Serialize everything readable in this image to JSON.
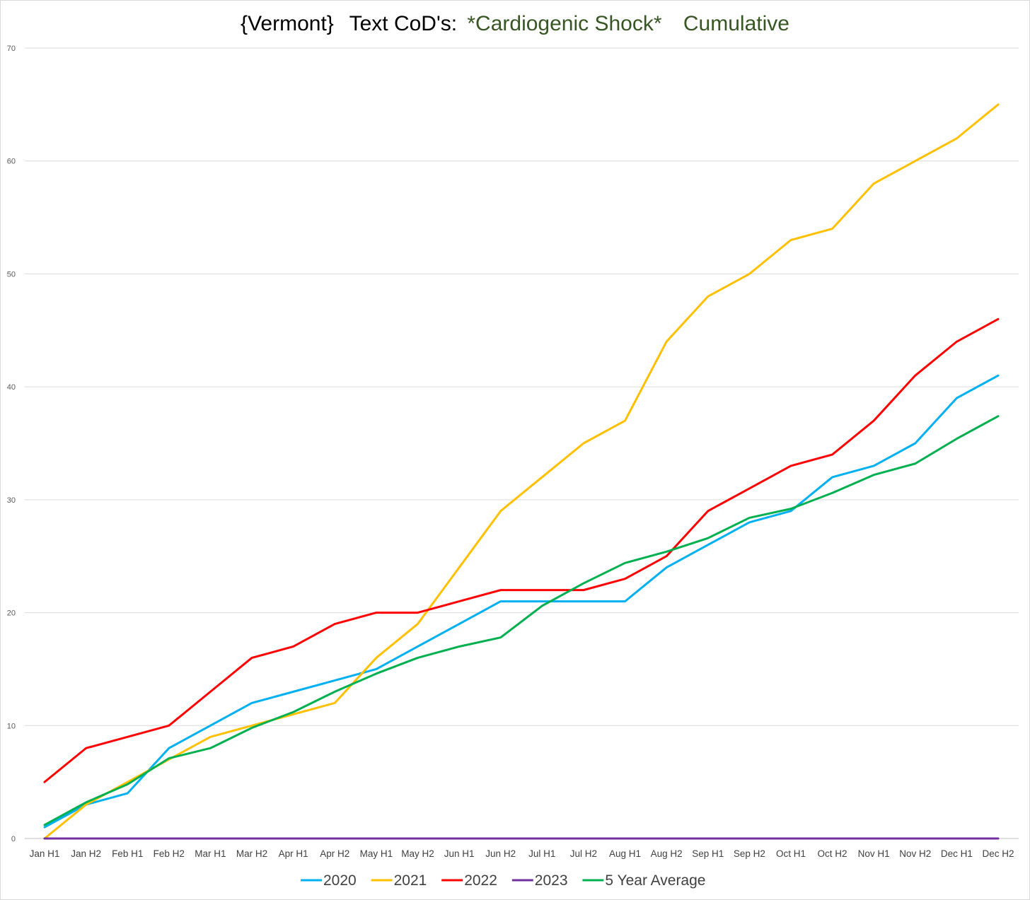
{
  "chart_data": {
    "type": "line",
    "title_parts": [
      {
        "text": "{Vermont}",
        "color": "#000000"
      },
      {
        "text": "Text CoD's:",
        "color": "#000000"
      },
      {
        "text": "*Cardiogenic Shock*",
        "color": "#375623"
      },
      {
        "text": "Cumulative",
        "color": "#375623"
      }
    ],
    "categories": [
      "Jan H1",
      "Jan H2",
      "Feb H1",
      "Feb H2",
      "Mar H1",
      "Mar H2",
      "Apr H1",
      "Apr H2",
      "May H1",
      "May H2",
      "Jun H1",
      "Jun H2",
      "Jul H1",
      "Jul H2",
      "Aug H1",
      "Aug H2",
      "Sep H1",
      "Sep H2",
      "Oct H1",
      "Oct H2",
      "Nov H1",
      "Nov H2",
      "Dec H1",
      "Dec H2"
    ],
    "y_ticks": [
      "0",
      "10",
      "20",
      "30",
      "40",
      "50",
      "60",
      "70"
    ],
    "ylim": [
      0,
      70
    ],
    "grid": true,
    "legend_position": "bottom",
    "series": [
      {
        "name": "2020",
        "color": "#00B0F0",
        "values": [
          1,
          3,
          4,
          8,
          10,
          12,
          13,
          14,
          15,
          17,
          19,
          21,
          21,
          21,
          21,
          24,
          26,
          28,
          29,
          32,
          33,
          35,
          39,
          41
        ]
      },
      {
        "name": "2021",
        "color": "#FFC000",
        "values": [
          0,
          3,
          5,
          7,
          9,
          10,
          11,
          12,
          16,
          19,
          24,
          29,
          32,
          35,
          37,
          44,
          48,
          50,
          53,
          54,
          58,
          60,
          62,
          65
        ]
      },
      {
        "name": "2022",
        "color": "#FF0000",
        "values": [
          5,
          8,
          9,
          10,
          13,
          16,
          17,
          19,
          20,
          20,
          21,
          22,
          22,
          22,
          23,
          25,
          29,
          31,
          33,
          34,
          37,
          41,
          44,
          46
        ]
      },
      {
        "name": "2023",
        "color": "#7030A0",
        "values": [
          0,
          0,
          0,
          0,
          0,
          0,
          0,
          0,
          0,
          0,
          0,
          0,
          0,
          0,
          0,
          0,
          0,
          0,
          0,
          0,
          0,
          0,
          0,
          0
        ]
      },
      {
        "name": "5 Year Average",
        "color": "#00B050",
        "values": [
          1.2,
          3.2,
          4.8,
          7.1,
          8,
          9.8,
          11.2,
          13,
          14.6,
          16,
          17,
          17.8,
          20.6,
          22.6,
          24.4,
          25.4,
          26.6,
          28.4,
          29.2,
          30.6,
          32.2,
          33.2,
          35.4,
          37.4
        ]
      }
    ]
  }
}
